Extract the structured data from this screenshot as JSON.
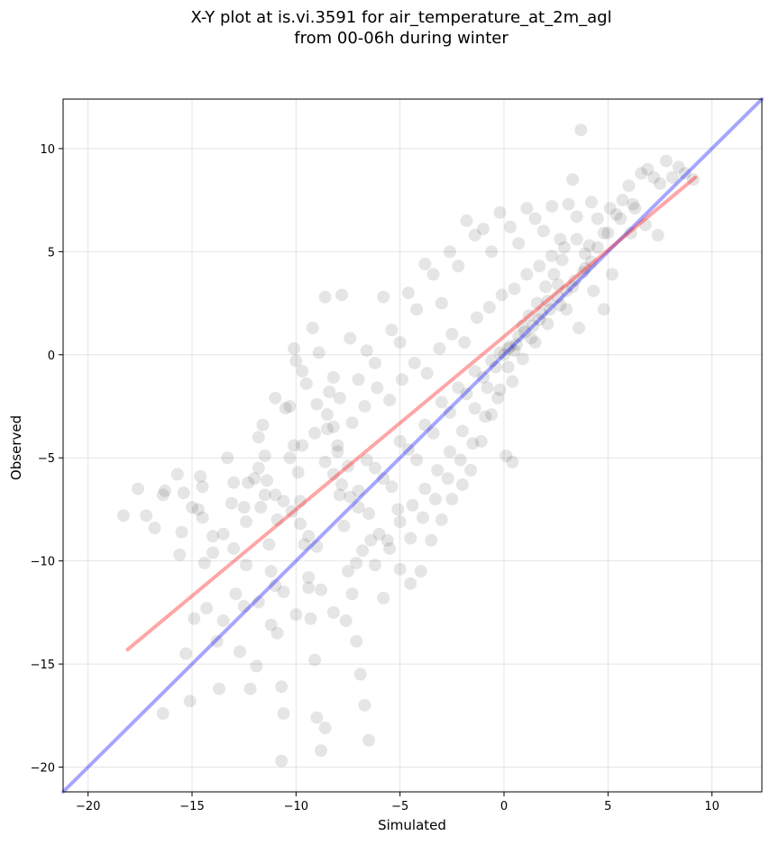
{
  "chart_data": {
    "type": "scatter",
    "title": "X-Y plot at is.vi.3591 for air_temperature_at_2m_agl",
    "subtitle": "from 00-06h during winter",
    "xlabel": "Simulated",
    "ylabel": "Observed",
    "xlim": [
      -21.2,
      12.4
    ],
    "ylim": [
      -21.2,
      12.4
    ],
    "xticks": [
      -20,
      -15,
      -10,
      -5,
      0,
      5,
      10
    ],
    "yticks": [
      -20,
      -15,
      -10,
      -5,
      0,
      5,
      10
    ],
    "xtick_labels": [
      "−20",
      "−15",
      "−10",
      "−5",
      "0",
      "5",
      "10"
    ],
    "ytick_labels": [
      "−20",
      "−15",
      "−10",
      "−5",
      "0",
      "5",
      "10"
    ],
    "grid": true,
    "legend": "none",
    "series": [
      {
        "kind": "points",
        "color": "#000000",
        "opacity": 0.1,
        "points": [
          [
            -18.3,
            -7.8
          ],
          [
            -17.6,
            -6.5
          ],
          [
            -17.2,
            -7.8
          ],
          [
            -16.8,
            -8.4
          ],
          [
            -16.4,
            -6.8
          ],
          [
            -16.3,
            -6.6
          ],
          [
            -16.4,
            -17.4
          ],
          [
            -15.7,
            -5.8
          ],
          [
            -15.6,
            -9.7
          ],
          [
            -15.4,
            -6.7
          ],
          [
            -15.3,
            -14.5
          ],
          [
            -15.1,
            -16.8
          ],
          [
            -14.9,
            -12.8
          ],
          [
            -14.7,
            -7.5
          ],
          [
            -14.6,
            -5.9
          ],
          [
            -14.5,
            -6.4
          ],
          [
            -14.4,
            -10.1
          ],
          [
            -14.3,
            -12.3
          ],
          [
            -14.0,
            -8.8
          ],
          [
            -13.8,
            -13.9
          ],
          [
            -13.7,
            -16.2
          ],
          [
            -13.5,
            -12.9
          ],
          [
            -13.3,
            -5.0
          ],
          [
            -13.1,
            -7.2
          ],
          [
            -13.0,
            -9.4
          ],
          [
            -12.9,
            -11.6
          ],
          [
            -12.7,
            -14.4
          ],
          [
            -12.5,
            -12.2
          ],
          [
            -12.4,
            -8.1
          ],
          [
            -12.3,
            -6.2
          ],
          [
            -12.2,
            -16.2
          ],
          [
            -11.9,
            -15.1
          ],
          [
            -11.8,
            -4.0
          ],
          [
            -11.6,
            -3.4
          ],
          [
            -11.5,
            -6.8
          ],
          [
            -11.3,
            -9.2
          ],
          [
            -11.2,
            -10.5
          ],
          [
            -11.0,
            -11.2
          ],
          [
            -10.9,
            -13.5
          ],
          [
            -10.7,
            -16.1
          ],
          [
            -10.6,
            -17.4
          ],
          [
            -10.3,
            -2.5
          ],
          [
            -10.1,
            -4.4
          ],
          [
            -9.9,
            -5.7
          ],
          [
            -9.8,
            -7.1
          ],
          [
            -9.6,
            -9.2
          ],
          [
            -9.4,
            -11.3
          ],
          [
            -9.3,
            -12.8
          ],
          [
            -9.1,
            -14.8
          ],
          [
            -9.0,
            -17.6
          ],
          [
            -8.8,
            -19.2
          ],
          [
            -8.6,
            -18.1
          ],
          [
            -8.4,
            -1.8
          ],
          [
            -8.2,
            -3.5
          ],
          [
            -8.0,
            -4.4
          ],
          [
            -7.9,
            -6.8
          ],
          [
            -7.7,
            -8.3
          ],
          [
            -7.5,
            -10.5
          ],
          [
            -7.3,
            -11.6
          ],
          [
            -7.1,
            -13.9
          ],
          [
            -6.9,
            -15.5
          ],
          [
            -6.7,
            -17.0
          ],
          [
            -6.5,
            -18.7
          ],
          [
            -10.7,
            -19.7
          ],
          [
            -10.1,
            0.3
          ],
          [
            -9.7,
            -0.8
          ],
          [
            -9.2,
            1.3
          ],
          [
            -8.9,
            0.1
          ],
          [
            -8.6,
            2.8
          ],
          [
            -8.2,
            -1.1
          ],
          [
            -7.8,
            2.9
          ],
          [
            -7.4,
            0.8
          ],
          [
            -7.0,
            -1.2
          ],
          [
            -6.6,
            0.2
          ],
          [
            -6.2,
            -0.4
          ],
          [
            -5.8,
            2.8
          ],
          [
            -5.4,
            1.2
          ],
          [
            -5.0,
            0.6
          ],
          [
            -4.6,
            3.0
          ],
          [
            -4.2,
            2.2
          ],
          [
            -3.8,
            4.4
          ],
          [
            -3.4,
            3.9
          ],
          [
            -3.0,
            2.5
          ],
          [
            -2.6,
            5.0
          ],
          [
            -2.2,
            4.3
          ],
          [
            -1.8,
            6.5
          ],
          [
            -1.4,
            5.8
          ],
          [
            -1.0,
            6.1
          ],
          [
            -0.6,
            5.0
          ],
          [
            -0.2,
            6.9
          ],
          [
            0.3,
            6.2
          ],
          [
            0.7,
            5.4
          ],
          [
            1.1,
            7.1
          ],
          [
            1.5,
            6.6
          ],
          [
            1.9,
            6.0
          ],
          [
            2.3,
            7.2
          ],
          [
            2.7,
            5.6
          ],
          [
            3.1,
            7.3
          ],
          [
            3.3,
            8.5
          ],
          [
            3.5,
            6.7
          ],
          [
            3.7,
            10.9
          ],
          [
            3.9,
            4.9
          ],
          [
            4.2,
            7.4
          ],
          [
            4.5,
            6.6
          ],
          [
            4.8,
            5.9
          ],
          [
            5.1,
            7.1
          ],
          [
            5.4,
            6.8
          ],
          [
            5.7,
            7.5
          ],
          [
            6.0,
            8.2
          ],
          [
            6.3,
            7.1
          ],
          [
            6.6,
            8.8
          ],
          [
            6.9,
            9.0
          ],
          [
            7.2,
            8.6
          ],
          [
            7.5,
            8.3
          ],
          [
            7.8,
            9.4
          ],
          [
            8.1,
            8.6
          ],
          [
            8.4,
            9.1
          ],
          [
            8.7,
            8.8
          ],
          [
            9.1,
            8.5
          ],
          [
            7.4,
            5.8
          ],
          [
            6.8,
            6.3
          ],
          [
            6.1,
            5.9
          ],
          [
            5.2,
            3.9
          ],
          [
            4.8,
            2.2
          ],
          [
            4.3,
            3.1
          ],
          [
            3.6,
            1.3
          ],
          [
            3.0,
            2.2
          ],
          [
            2.6,
            3.4
          ],
          [
            2.1,
            2.6
          ],
          [
            1.7,
            1.7
          ],
          [
            1.3,
            0.8
          ],
          [
            0.9,
            1.4
          ],
          [
            0.5,
            0.2
          ],
          [
            0.2,
            -0.6
          ],
          [
            -0.2,
            -1.7
          ],
          [
            0.1,
            -4.9
          ],
          [
            0.4,
            -5.2
          ],
          [
            -0.6,
            -2.9
          ],
          [
            -1.1,
            -4.2
          ],
          [
            -1.6,
            -5.6
          ],
          [
            -2.0,
            -6.3
          ],
          [
            -2.5,
            -7.0
          ],
          [
            -3.0,
            -8.0
          ],
          [
            -3.5,
            -9.0
          ],
          [
            -4.0,
            -10.5
          ],
          [
            -4.5,
            -11.1
          ],
          [
            -5.0,
            -10.4
          ],
          [
            -5.5,
            -9.4
          ],
          [
            -6.0,
            -8.7
          ],
          [
            -6.5,
            -7.7
          ],
          [
            -7.0,
            -6.6
          ],
          [
            -7.5,
            -5.4
          ],
          [
            -8.0,
            -4.7
          ],
          [
            -8.5,
            -3.6
          ],
          [
            -9.0,
            -2.4
          ],
          [
            -9.5,
            -1.4
          ],
          [
            -10.0,
            -0.3
          ],
          [
            -10.5,
            -2.6
          ],
          [
            -11.0,
            -2.1
          ],
          [
            -11.5,
            -4.9
          ],
          [
            -12.0,
            -6.0
          ],
          [
            -12.5,
            -7.4
          ],
          [
            -13.0,
            -6.2
          ],
          [
            -13.5,
            -8.7
          ],
          [
            -14.0,
            -9.6
          ],
          [
            -14.5,
            -7.9
          ],
          [
            -15.0,
            -7.4
          ],
          [
            -15.5,
            -8.6
          ],
          [
            -11.8,
            -5.5
          ],
          [
            -11.4,
            -6.1
          ],
          [
            -11.0,
            -6.8
          ],
          [
            -10.6,
            -7.1
          ],
          [
            -10.2,
            -7.6
          ],
          [
            -9.8,
            -8.2
          ],
          [
            -9.4,
            -8.8
          ],
          [
            -9.0,
            -9.3
          ],
          [
            -8.6,
            -5.2
          ],
          [
            -8.2,
            -5.8
          ],
          [
            -7.8,
            -6.3
          ],
          [
            -7.4,
            -6.9
          ],
          [
            -7.0,
            -7.4
          ],
          [
            -6.6,
            -5.1
          ],
          [
            -6.2,
            -5.5
          ],
          [
            -5.8,
            -6.0
          ],
          [
            -5.4,
            -6.4
          ],
          [
            -5.0,
            -4.2
          ],
          [
            -4.6,
            -4.6
          ],
          [
            -4.2,
            -5.1
          ],
          [
            -3.8,
            -3.4
          ],
          [
            -3.4,
            -3.8
          ],
          [
            -3.0,
            -2.3
          ],
          [
            -2.6,
            -2.8
          ],
          [
            -2.2,
            -1.6
          ],
          [
            -1.8,
            -1.9
          ],
          [
            -1.4,
            -0.8
          ],
          [
            -1.0,
            -1.1
          ],
          [
            -0.6,
            -0.3
          ],
          [
            -0.2,
            0.1
          ],
          [
            0.2,
            0.3
          ],
          [
            0.6,
            0.5
          ],
          [
            1.0,
            1.1
          ],
          [
            1.4,
            1.4
          ],
          [
            1.8,
            2.0
          ],
          [
            2.2,
            2.2
          ],
          [
            2.6,
            2.8
          ],
          [
            3.0,
            3.1
          ],
          [
            3.4,
            3.6
          ],
          [
            3.8,
            4.0
          ],
          [
            4.2,
            4.5
          ],
          [
            -11.7,
            -7.4
          ],
          [
            -10.9,
            -8.0
          ],
          [
            -10.3,
            -5.0
          ],
          [
            -9.7,
            -4.4
          ],
          [
            -9.1,
            -3.8
          ],
          [
            -8.5,
            -2.9
          ],
          [
            -7.9,
            -2.1
          ],
          [
            -7.3,
            -3.3
          ],
          [
            -6.7,
            -2.5
          ],
          [
            -6.1,
            -1.6
          ],
          [
            -5.5,
            -2.2
          ],
          [
            -4.9,
            -1.2
          ],
          [
            -4.3,
            -0.4
          ],
          [
            -3.7,
            -0.9
          ],
          [
            -3.1,
            0.3
          ],
          [
            -2.5,
            1.0
          ],
          [
            -1.9,
            0.6
          ],
          [
            -1.3,
            1.8
          ],
          [
            -0.7,
            2.3
          ],
          [
            -0.1,
            2.9
          ],
          [
            0.5,
            3.2
          ],
          [
            1.1,
            3.9
          ],
          [
            1.7,
            4.3
          ],
          [
            2.3,
            4.8
          ],
          [
            2.9,
            5.2
          ],
          [
            3.5,
            5.6
          ],
          [
            4.1,
            5.3
          ],
          [
            -6.8,
            -9.5
          ],
          [
            -6.2,
            -10.2
          ],
          [
            -5.6,
            -9.0
          ],
          [
            -5.0,
            -8.1
          ],
          [
            -4.4,
            -7.3
          ],
          [
            -3.8,
            -6.5
          ],
          [
            -3.2,
            -5.6
          ],
          [
            -2.6,
            -4.7
          ],
          [
            -2.0,
            -3.7
          ],
          [
            -1.4,
            -2.6
          ],
          [
            -0.8,
            -1.6
          ],
          [
            -0.4,
            -0.6
          ],
          [
            0.0,
            0.0
          ],
          [
            0.3,
            0.4
          ],
          [
            0.7,
            0.9
          ],
          [
            1.2,
            1.9
          ],
          [
            1.6,
            2.5
          ],
          [
            2.0,
            3.3
          ],
          [
            2.4,
            3.9
          ],
          [
            2.8,
            4.6
          ],
          [
            -12.4,
            -10.2
          ],
          [
            -11.8,
            -12.0
          ],
          [
            -11.2,
            -13.1
          ],
          [
            -10.6,
            -11.5
          ],
          [
            -10.0,
            -12.6
          ],
          [
            -9.4,
            -10.8
          ],
          [
            -8.8,
            -11.4
          ],
          [
            -8.2,
            -12.5
          ],
          [
            -7.6,
            -12.9
          ],
          [
            -7.1,
            -10.1
          ],
          [
            -6.4,
            -9.0
          ],
          [
            -5.8,
            -11.8
          ],
          [
            -5.1,
            -7.5
          ],
          [
            -4.5,
            -8.9
          ],
          [
            -3.9,
            -7.9
          ],
          [
            -3.3,
            -7.0
          ],
          [
            -2.7,
            -6.0
          ],
          [
            -2.1,
            -5.1
          ],
          [
            -1.5,
            -4.3
          ],
          [
            -0.9,
            -3.0
          ],
          [
            -0.3,
            -2.1
          ],
          [
            0.4,
            -1.3
          ],
          [
            0.9,
            -0.2
          ],
          [
            1.5,
            0.6
          ],
          [
            2.1,
            1.5
          ],
          [
            2.7,
            2.4
          ],
          [
            3.3,
            3.3
          ],
          [
            3.9,
            4.2
          ],
          [
            4.5,
            5.2
          ],
          [
            5.0,
            5.9
          ],
          [
            5.6,
            6.6
          ],
          [
            6.2,
            7.3
          ]
        ]
      },
      {
        "kind": "line",
        "color": "#0000ff",
        "opacity": 0.35,
        "x": [
          -21.2,
          12.4
        ],
        "y": [
          -21.2,
          12.4
        ]
      },
      {
        "kind": "line",
        "color": "#ff0000",
        "opacity": 0.35,
        "x": [
          -18.1,
          9.2
        ],
        "y": [
          -14.3,
          8.6
        ]
      }
    ]
  }
}
